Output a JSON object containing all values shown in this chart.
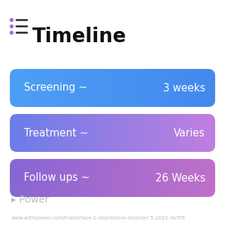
{
  "title": "Timeline",
  "title_fontsize": 20,
  "title_color": "#111111",
  "icon_color": "#9b6fd4",
  "icon_line_color": "#333333",
  "rows": [
    {
      "label": "Screening ~",
      "value": "3 weeks",
      "color_left": "#4d9ff5",
      "color_right": "#4488ee"
    },
    {
      "label": "Treatment ~",
      "value": "Varies",
      "color_left": "#6b7de8",
      "color_right": "#c07fe0"
    },
    {
      "label": "Follow ups ~",
      "value": "26 Weeks",
      "color_left": "#8866d4",
      "color_right": "#c070c8"
    }
  ],
  "text_color": "#ffffff",
  "label_fontsize": 10.5,
  "value_fontsize": 10.5,
  "watermark_text": "▸ Power",
  "watermark_color": "#bbbbbb",
  "watermark_fontsize": 10,
  "url_text": "www.withpower.com/trial/phase-1-depressive-disorder-5-2021-9e5f9",
  "url_color": "#bbbbbb",
  "url_fontsize": 5.2,
  "bg_color": "#ffffff"
}
